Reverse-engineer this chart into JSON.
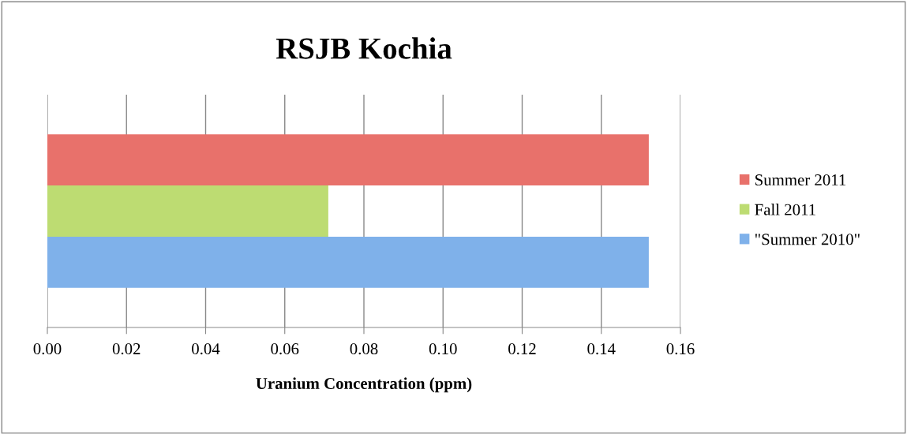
{
  "chart_data": {
    "type": "bar",
    "orientation": "horizontal",
    "title": "RSJB Kochia",
    "xlabel": "Uranium Concentration (ppm)",
    "categories": [
      null
    ],
    "series": [
      {
        "name": "Summer 2011",
        "color": "#e8716b",
        "values": [
          0.152
        ]
      },
      {
        "name": "Fall 2011",
        "color": "#bddc72",
        "values": [
          0.071
        ]
      },
      {
        "name": "\"Summer 2010\"",
        "color": "#7fb1ea",
        "values": [
          0.152
        ]
      }
    ],
    "xlim": [
      0,
      0.16
    ],
    "xticks": [
      {
        "value": 0,
        "label": "0.00"
      },
      {
        "value": 0.02,
        "label": "0.02"
      },
      {
        "value": 0.04,
        "label": "0.04"
      },
      {
        "value": 0.06,
        "label": "0.06"
      },
      {
        "value": 0.08,
        "label": "0.08"
      },
      {
        "value": 0.1,
        "label": "0.10"
      },
      {
        "value": 0.12,
        "label": "0.12"
      },
      {
        "value": 0.14,
        "label": "0.14"
      },
      {
        "value": 0.16,
        "label": "0.16"
      }
    ],
    "grid": "x",
    "legend": "right"
  }
}
